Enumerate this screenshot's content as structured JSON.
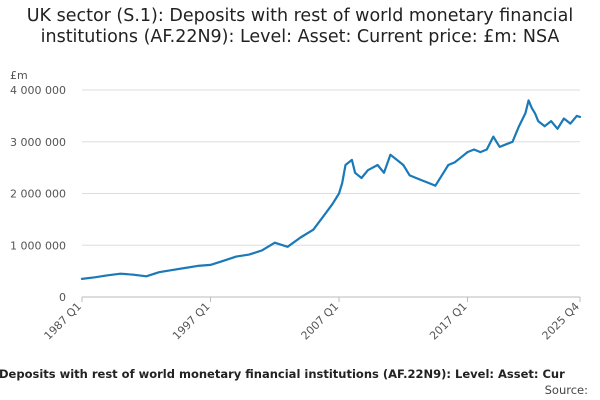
{
  "chart_title": "UK sector (S.1): Deposits with rest of world monetary financial institutions (AF.22N9): Level: Asset: Current price: £m: NSA",
  "footer": {
    "caption": "Deposits with rest of world monetary financial institutions (AF.22N9): Level: Asset: Cur",
    "source": "Source:"
  },
  "colors": {
    "line": "#1a79b8",
    "grid": "#dddddd",
    "axis": "#bbbbbb",
    "text": "#222222"
  },
  "chart_data": {
    "type": "line",
    "title": "UK sector (S.1): Deposits with rest of world monetary financial institutions (AF.22N9): Level: Asset: Current price: £m: NSA",
    "ylabel": "£m",
    "xlabel": "",
    "ylim": [
      0,
      4000000
    ],
    "y_ticks": [
      0,
      1000000,
      2000000,
      3000000,
      4000000
    ],
    "y_tick_labels": [
      "0",
      "1 000 000",
      "2 000 000",
      "3 000 000",
      "4 000 000"
    ],
    "x_ticks": [
      1987.0,
      1997.0,
      2007.0,
      2017.0,
      2025.75
    ],
    "x_tick_labels": [
      "1987 Q1",
      "1997 Q1",
      "2007 Q1",
      "2017 Q1",
      "2025 Q4"
    ],
    "xlim": [
      1987.0,
      2025.75
    ],
    "grid": "horizontal",
    "legend": "none",
    "series": [
      {
        "x": [
          1987.0,
          1988.0,
          1989.0,
          1990.0,
          1991.0,
          1992.0,
          1993.0,
          1994.0,
          1995.0,
          1996.0,
          1997.0,
          1998.0,
          1999.0,
          2000.0,
          2001.0,
          2002.0,
          2003.0,
          2004.0,
          2005.0,
          2005.75,
          2006.5,
          2007.0,
          2007.25,
          2007.5,
          2008.0,
          2008.25,
          2008.75,
          2009.25,
          2010.0,
          2010.5,
          2011.0,
          2011.5,
          2012.0,
          2012.5,
          2013.0,
          2013.5,
          2014.0,
          2014.5,
          2015.0,
          2015.5,
          2016.0,
          2016.5,
          2017.0,
          2017.5,
          2018.0,
          2018.5,
          2019.0,
          2019.25,
          2019.5,
          2020.0,
          2020.5,
          2021.0,
          2021.5,
          2021.75,
          2022.0,
          2022.25,
          2022.5,
          2023.0,
          2023.5,
          2024.0,
          2024.5,
          2025.0,
          2025.5,
          2025.75
        ],
        "values": [
          350000,
          380000,
          420000,
          450000,
          430000,
          400000,
          480000,
          520000,
          560000,
          600000,
          620000,
          700000,
          780000,
          820000,
          900000,
          1050000,
          970000,
          1150000,
          1300000,
          1550000,
          1800000,
          2000000,
          2200000,
          2550000,
          2650000,
          2400000,
          2300000,
          2450000,
          2550000,
          2400000,
          2750000,
          2650000,
          2550000,
          2350000,
          2300000,
          2250000,
          2200000,
          2150000,
          2350000,
          2550000,
          2600000,
          2700000,
          2800000,
          2850000,
          2800000,
          2850000,
          3100000,
          3000000,
          2900000,
          2950000,
          3000000,
          3300000,
          3550000,
          3800000,
          3650000,
          3550000,
          3400000,
          3300000,
          3400000,
          3250000,
          3450000,
          3350000,
          3500000,
          3480000
        ]
      }
    ]
  }
}
